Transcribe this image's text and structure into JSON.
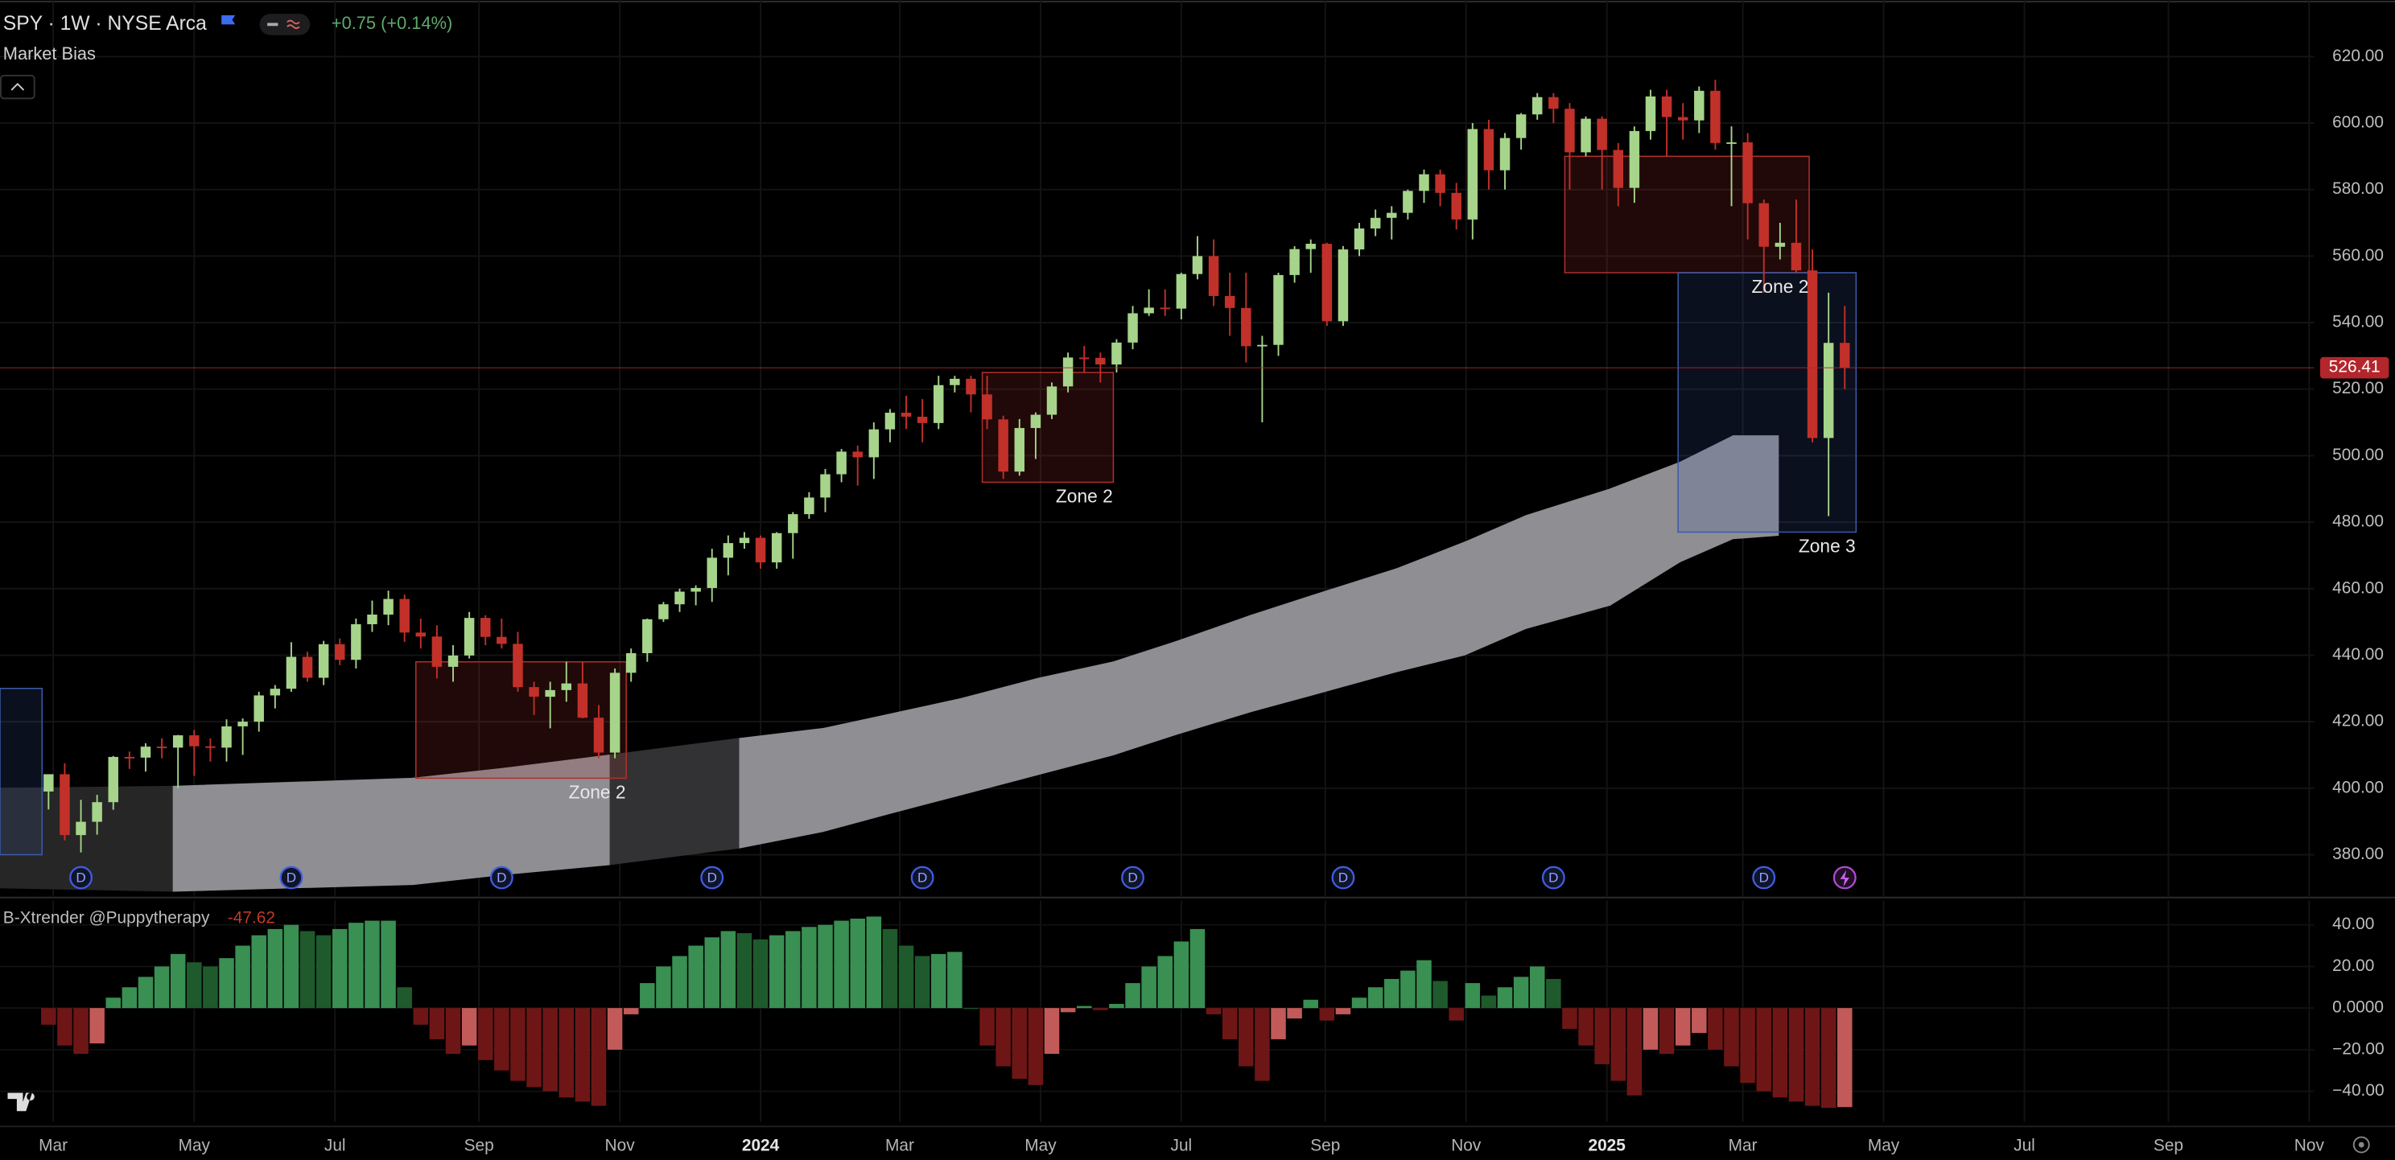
{
  "chart_data": [
    {
      "type": "candlestick",
      "title": "SPY · 1W · NYSE Arca",
      "subtitle": "+0.75 (+0.14%)",
      "indicator": "Market Bias",
      "up_color": "#a6d48a",
      "down_color": "#c2302a",
      "xlim": [
        -3,
        140
      ],
      "ylim": [
        367.6,
        637
      ],
      "xticks": [
        {
          "value": 0.29,
          "label": "Mar"
        },
        {
          "value": 9,
          "label": "May"
        },
        {
          "value": 17.7,
          "label": "Jul"
        },
        {
          "value": 26.6,
          "label": "Sep"
        },
        {
          "value": 35.3,
          "label": "Nov"
        },
        {
          "value": 44,
          "label": "2024"
        },
        {
          "value": 52.6,
          "label": "Mar"
        },
        {
          "value": 61.3,
          "label": "May"
        },
        {
          "value": 70,
          "label": "Jul"
        },
        {
          "value": 78.9,
          "label": "Sep"
        },
        {
          "value": 87.6,
          "label": "Nov"
        },
        {
          "value": 96.3,
          "label": "2025"
        },
        {
          "value": 104.7,
          "label": "Mar"
        },
        {
          "value": 113.4,
          "label": "May"
        },
        {
          "value": 122.1,
          "label": "Jul"
        },
        {
          "value": 131,
          "label": "Sep"
        },
        {
          "value": 139.7,
          "label": "Nov"
        }
      ],
      "yticks": [
        {
          "value": 380,
          "label": "380.00"
        },
        {
          "value": 400,
          "label": "400.00"
        },
        {
          "value": 420,
          "label": "420.00"
        },
        {
          "value": 440,
          "label": "440.00"
        },
        {
          "value": 460,
          "label": "460.00"
        },
        {
          "value": 480,
          "label": "480.00"
        },
        {
          "value": 500,
          "label": "500.00"
        },
        {
          "value": 520,
          "label": "520.00"
        },
        {
          "value": 540,
          "label": "540.00"
        },
        {
          "value": 560,
          "label": "560.00"
        },
        {
          "value": 580,
          "label": "580.00"
        },
        {
          "value": 600,
          "label": "600.00"
        },
        {
          "value": 620,
          "label": "620.00"
        }
      ],
      "grid": true,
      "candles": [
        [
          399,
          404,
          393.6,
          404.2
        ],
        [
          404.2,
          407.5,
          384.3,
          385.9
        ],
        [
          385.9,
          396.5,
          380.7,
          389.9
        ],
        [
          389.9,
          398,
          386,
          395.8
        ],
        [
          395.8,
          409.7,
          393.5,
          409.4
        ],
        [
          409.4,
          411,
          405.8,
          409.2
        ],
        [
          409.2,
          413.5,
          405,
          412.5
        ],
        [
          412.5,
          415,
          409,
          412.2
        ],
        [
          412.2,
          416,
          400,
          415.9
        ],
        [
          415.9,
          417.5,
          403.7,
          412.6
        ],
        [
          412.6,
          415,
          408,
          412.2
        ],
        [
          412.2,
          420.7,
          408,
          418.6
        ],
        [
          418.6,
          421,
          410,
          420
        ],
        [
          420,
          429,
          417,
          427.9
        ],
        [
          427.9,
          431,
          424,
          429.9
        ],
        [
          429.9,
          443.9,
          429,
          439.5
        ],
        [
          439.5,
          441,
          432,
          433.2
        ],
        [
          433.2,
          444.3,
          431,
          443.3
        ],
        [
          443.3,
          445,
          437,
          438.6
        ],
        [
          438.6,
          451,
          436,
          449.3
        ],
        [
          449.3,
          456.4,
          447,
          452.2
        ],
        [
          452.2,
          459.4,
          449,
          456.9
        ],
        [
          456.9,
          458.2,
          444,
          446.8
        ],
        [
          446.8,
          451,
          442,
          445.6
        ],
        [
          445.6,
          449,
          433,
          436.5
        ],
        [
          436.5,
          443,
          432,
          439.9
        ],
        [
          439.9,
          453,
          439,
          451.2
        ],
        [
          451.2,
          452,
          443,
          445.5
        ],
        [
          445.5,
          451,
          442,
          443.4
        ],
        [
          443.4,
          447,
          429,
          430.4
        ],
        [
          430.4,
          432,
          422,
          427.5
        ],
        [
          427.5,
          432,
          418,
          429.5
        ],
        [
          429.5,
          438,
          426,
          431.5
        ],
        [
          431.5,
          438,
          421,
          421.2
        ],
        [
          421.2,
          425,
          409,
          410.7
        ],
        [
          410.7,
          436,
          409,
          434.7
        ],
        [
          434.7,
          442,
          432,
          440.6
        ],
        [
          440.6,
          451,
          438,
          450.8
        ],
        [
          450.8,
          456,
          450,
          455.3
        ],
        [
          455.3,
          460,
          453,
          459.1
        ],
        [
          459.1,
          461,
          455,
          460.2
        ],
        [
          460.2,
          472,
          456,
          469.3
        ],
        [
          469.3,
          476,
          464,
          473.7
        ],
        [
          473.7,
          477,
          472,
          475.3
        ],
        [
          475.3,
          476,
          466,
          467.9
        ],
        [
          467.9,
          477,
          466,
          476.7
        ],
        [
          476.7,
          483,
          469,
          482.4
        ],
        [
          482.4,
          489,
          481,
          487.4
        ],
        [
          487.4,
          496,
          483,
          494.4
        ],
        [
          494.4,
          502,
          492,
          501.2
        ],
        [
          501.2,
          503,
          491,
          499.5
        ],
        [
          499.5,
          510,
          493,
          507.9
        ],
        [
          507.9,
          514,
          504,
          512.9
        ],
        [
          512.9,
          518,
          508,
          511.7
        ],
        [
          511.7,
          517,
          504,
          509.8
        ],
        [
          509.8,
          524,
          508,
          521.2
        ],
        [
          521.2,
          524,
          519,
          523.1
        ],
        [
          523.1,
          524,
          513,
          518.4
        ],
        [
          518.4,
          524,
          508,
          510.9
        ],
        [
          510.9,
          512,
          493,
          495.2
        ],
        [
          495.2,
          511,
          494,
          508.3
        ],
        [
          508.3,
          513,
          499,
          512.3
        ],
        [
          512.3,
          522,
          511,
          520.8
        ],
        [
          520.8,
          531,
          519,
          529.5
        ],
        [
          529.5,
          533,
          525,
          529.4
        ],
        [
          529.4,
          531,
          522,
          527.4
        ],
        [
          527.4,
          535,
          525,
          534
        ],
        [
          534,
          545,
          532,
          542.8
        ],
        [
          542.8,
          550,
          542,
          544.5
        ],
        [
          544.5,
          550,
          542,
          544.2
        ],
        [
          544.2,
          555,
          541,
          554.6
        ],
        [
          554.6,
          566,
          553,
          560
        ],
        [
          560,
          565,
          545,
          548
        ],
        [
          548,
          555,
          536,
          544.4
        ],
        [
          544.4,
          555,
          528,
          532.9
        ],
        [
          532.9,
          536,
          510,
          533.3
        ],
        [
          533.3,
          555,
          530,
          554.3
        ],
        [
          554.3,
          563,
          552,
          562.1
        ],
        [
          562.1,
          565,
          555,
          563.7
        ],
        [
          563.7,
          564,
          539,
          540.4
        ],
        [
          540.4,
          563,
          539,
          562
        ],
        [
          562,
          570,
          560,
          568.3
        ],
        [
          568.3,
          574,
          566,
          571.5
        ],
        [
          571.5,
          575,
          565,
          573
        ],
        [
          573,
          580,
          571,
          579.6
        ],
        [
          579.6,
          586,
          576,
          584.6
        ],
        [
          584.6,
          586,
          575,
          579
        ],
        [
          579,
          582,
          568,
          571
        ],
        [
          571,
          600,
          565,
          598.2
        ],
        [
          598.2,
          601,
          580,
          585.8
        ],
        [
          585.8,
          597,
          580,
          595.5
        ],
        [
          595.5,
          603,
          592,
          602.6
        ],
        [
          602.6,
          609,
          601,
          607.8
        ],
        [
          607.8,
          609,
          600,
          604.3
        ],
        [
          604.3,
          606,
          580,
          591.2
        ],
        [
          591.2,
          602,
          590,
          601.3
        ],
        [
          601.3,
          602,
          580,
          591.9
        ],
        [
          591.9,
          594,
          575,
          580.5
        ],
        [
          580.5,
          599,
          576,
          597.6
        ],
        [
          597.6,
          610,
          595,
          608
        ],
        [
          608,
          610,
          590,
          601.8
        ],
        [
          601.8,
          606,
          595,
          600.8
        ],
        [
          600.8,
          611,
          597,
          609.7
        ],
        [
          609.7,
          613,
          592,
          594
        ],
        [
          594,
          599,
          575,
          594.2
        ],
        [
          594.2,
          597,
          565,
          575.9
        ],
        [
          575.9,
          577,
          549,
          562.8
        ],
        [
          562.8,
          570,
          559,
          564
        ],
        [
          564,
          577,
          555,
          555.7
        ],
        [
          555.7,
          562,
          504,
          505.3
        ],
        [
          505.3,
          549,
          481.8,
          533.9
        ],
        [
          533.9,
          545,
          520,
          526.41
        ]
      ],
      "band": {
        "x": [
          -3,
          7.7,
          22.5,
          28.1,
          34.7,
          42.7,
          47.9,
          51.7,
          56.4,
          61.1,
          65.8,
          69.6,
          74.3,
          78.1,
          83.3,
          87.5,
          91.3,
          96.5,
          100.8,
          104.1,
          106.9
        ],
        "upper": [
          400,
          400.6,
          403,
          406,
          410,
          415,
          418,
          422,
          427,
          433,
          438,
          444,
          452,
          458,
          466,
          474,
          482,
          490,
          498,
          506,
          506
        ],
        "lower": [
          370,
          369,
          371,
          374,
          377,
          382,
          387,
          392,
          398,
          404,
          410,
          416,
          423,
          428,
          435,
          440,
          448,
          455,
          468,
          475,
          476
        ],
        "colors": [
          "#262627",
          "#8e8e93",
          "#8e8e93",
          "#8e8e93",
          "#323234",
          "#8e8e93",
          "#8e8e93",
          "#8e8e93",
          "#8e8e93",
          "#8e8e93",
          "#8e8e93",
          "#8e8e93",
          "#8e8e93",
          "#8e8e93",
          "#8e8e93",
          "#8e8e93",
          "#8e8e93",
          "#8e8e93",
          "#8e8e93",
          "#8e8e93"
        ]
      },
      "zones": [
        {
          "x0": -3,
          "x1": -0.4,
          "y0": 380,
          "y1": 430,
          "color": "#3b5aa8"
        },
        {
          "label": "Zone 2",
          "x0": 22.7,
          "x1": 35.7,
          "y0": 403,
          "y1": 438,
          "color": "#b0302a"
        },
        {
          "label": "Zone 2",
          "x0": 57.7,
          "x1": 65.8,
          "y0": 492,
          "y1": 525,
          "color": "#b0302a"
        },
        {
          "label": "Zone 2",
          "x0": 93.7,
          "x1": 108.8,
          "y0": 555,
          "y1": 590,
          "color": "#b0302a"
        },
        {
          "label": "Zone 3",
          "x0": 100.7,
          "x1": 111.7,
          "y0": 477,
          "y1": 555,
          "color": "#3b5aa8"
        }
      ],
      "dividends": [
        2,
        15,
        28,
        41,
        54,
        67,
        80,
        93,
        106
      ],
      "dividend_label": "D",
      "last_price_color": "#b3262b"
    },
    {
      "type": "histogram",
      "title": "B-Xtrender @Puppytherapy",
      "xlim": [
        -3,
        140
      ],
      "ylim": [
        -54.7,
        51.7
      ],
      "yticks": [
        {
          "value": 40,
          "label": "40.00"
        },
        {
          "value": 20,
          "label": "20.00"
        },
        {
          "value": 0,
          "label": "0.0000"
        },
        {
          "value": -20,
          "label": "−20.00"
        },
        {
          "value": -40,
          "label": "−40.00"
        }
      ],
      "colors": {
        "up_rising": "#3a8f53",
        "up_falling": "#1f5a2c",
        "down_falling": "#6e1616",
        "down_rising": "#c25a5a"
      },
      "values": [
        -8,
        -18,
        -22,
        -17,
        5,
        10,
        15,
        20,
        26,
        22,
        20,
        24,
        30,
        35,
        38,
        40,
        37,
        35,
        38,
        41,
        42,
        42,
        10,
        -8,
        -15,
        -22,
        -18,
        -25,
        -30,
        -35,
        -38,
        -40,
        -43,
        -45,
        -47,
        -20,
        -3,
        12,
        20,
        25,
        30,
        34,
        37,
        36,
        33,
        35,
        37,
        39,
        40,
        42,
        43,
        44,
        38,
        30,
        25,
        26,
        27,
        0,
        -18,
        -28,
        -34,
        -37,
        -22,
        -2,
        1,
        -1,
        2,
        12,
        20,
        25,
        32,
        38,
        -3,
        -15,
        -28,
        -35,
        -15,
        -5,
        4,
        -6,
        -3,
        5,
        10,
        14,
        18,
        23,
        13,
        -6,
        12,
        6,
        10,
        15,
        20,
        14,
        -10,
        -18,
        -27,
        -35,
        -42,
        -20,
        -22,
        -18,
        -12,
        -20,
        -28,
        -36,
        -40,
        -43,
        -45,
        -47,
        -48,
        -47.62
      ]
    }
  ]
}
